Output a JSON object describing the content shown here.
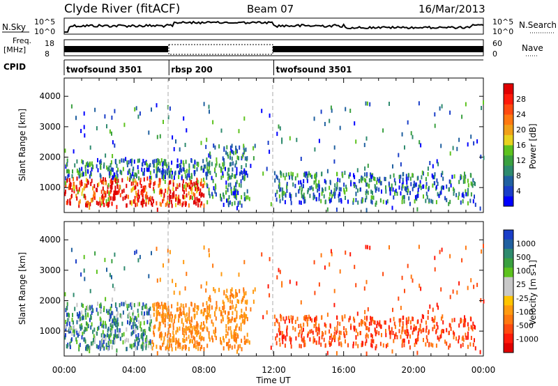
{
  "header": {
    "station": "Clyde River (fitACF)",
    "beam": "Beam 07",
    "date": "16/Mar/2013"
  },
  "noise_panel": {
    "left_label": "N.Sky",
    "right_label": "N.Search",
    "left_ticks": [
      "10^5",
      "10^0"
    ],
    "right_ticks": [
      "10^5",
      "10^0"
    ]
  },
  "freq_panel": {
    "left_label_line1": "Freq.",
    "left_label_line2": "[MHz]",
    "right_label": "Nave",
    "left_ticks": [
      "18",
      "8"
    ],
    "right_ticks": [
      "60",
      "0"
    ]
  },
  "cpid": {
    "label": "CPID",
    "segments": [
      {
        "name": "twofsound 3501",
        "start_hour": 0,
        "end_hour": 6
      },
      {
        "name": "rbsp 200",
        "start_hour": 6,
        "end_hour": 12
      },
      {
        "name": "twofsound 3501",
        "start_hour": 12,
        "end_hour": 24
      }
    ]
  },
  "chart_data": [
    {
      "type": "heatmap",
      "title": "",
      "xlabel": "Time UT",
      "ylabel": "Slant Range [km]",
      "xlim": [
        0,
        24
      ],
      "ylim": [
        180,
        4600
      ],
      "x_tick_labels": [
        "00:00",
        "04:00",
        "08:00",
        "12:00",
        "16:00",
        "20:00",
        "00:00"
      ],
      "y_ticks": [
        1000,
        2000,
        3000,
        4000
      ],
      "colorbar": {
        "label": "Power [dB]",
        "ticks": [
          "4",
          "8",
          "12",
          "16",
          "20",
          "24",
          "28"
        ],
        "range": [
          0,
          30
        ],
        "colors": [
          "#0000ff",
          "#1a3ec8",
          "#2060a0",
          "#2e8a6e",
          "#3aa040",
          "#5dc21e",
          "#e8d21e",
          "#f0a018",
          "#ff7810",
          "#ff4a10",
          "#ff1a0a",
          "#e00000"
        ]
      }
    },
    {
      "type": "heatmap",
      "title": "",
      "xlabel": "Time UT",
      "ylabel": "Slant Range [km]",
      "xlim": [
        0,
        24
      ],
      "ylim": [
        180,
        4600
      ],
      "x_tick_labels": [
        "00:00",
        "04:00",
        "08:00",
        "12:00",
        "16:00",
        "20:00",
        "00:00"
      ],
      "y_ticks": [
        1000,
        2000,
        3000,
        4000
      ],
      "colorbar": {
        "label": "Velocity [m s-1]",
        "ticks": [
          "1000",
          "500",
          "100",
          "25",
          "-25",
          "-100",
          "-500",
          "-1000"
        ],
        "colors": [
          "#1a3ec8",
          "#2060a0",
          "#2e8a6e",
          "#3aa040",
          "#5dc21e",
          "#c8c8c8",
          "#c8c8c8",
          "#ffc400",
          "#ff9a10",
          "#ff7810",
          "#ff4a10",
          "#ff1a0a",
          "#e00000"
        ]
      }
    }
  ]
}
